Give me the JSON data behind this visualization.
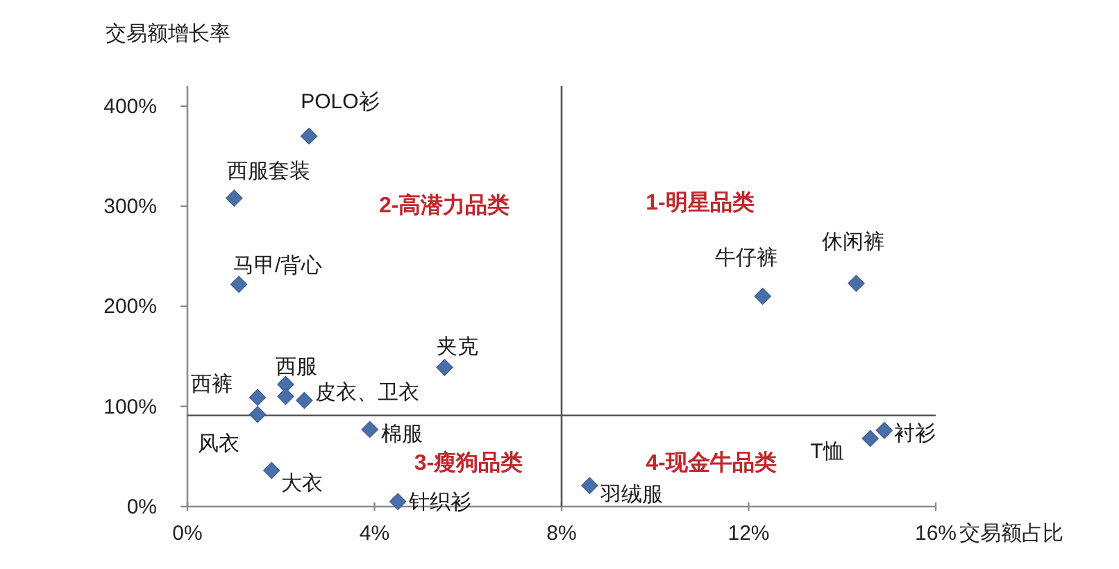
{
  "chart_data": {
    "type": "scatter",
    "xlabel": "交易额占比",
    "ylabel": "交易额增长率",
    "x": [
      2.6,
      1.0,
      1.1,
      5.5,
      2.1,
      2.1,
      2.5,
      1.5,
      1.5,
      3.9,
      1.8,
      4.5,
      12.3,
      14.3,
      14.9,
      14.6,
      8.6
    ],
    "values": [
      370,
      308,
      222,
      139,
      122,
      110,
      106,
      109,
      92,
      77,
      36,
      5,
      210,
      223,
      76,
      68,
      21
    ],
    "color": "#4a6fa8",
    "marker": "diamond",
    "xlim": [
      0,
      16
    ],
    "xticks": [
      {
        "value": 0,
        "label": "0%"
      },
      {
        "value": 4,
        "label": "4%"
      },
      {
        "value": 8,
        "label": "8%"
      },
      {
        "value": 12,
        "label": "12%"
      },
      {
        "value": 16,
        "label": "16%"
      }
    ],
    "ylim": [
      0,
      420
    ],
    "yticks": [
      {
        "value": 0,
        "label": "0%"
      },
      {
        "value": 100,
        "label": "100%"
      },
      {
        "value": 200,
        "label": "200%"
      },
      {
        "value": 300,
        "label": "300%"
      },
      {
        "value": 400,
        "label": "400%"
      }
    ],
    "ref_lines": [
      {
        "axis": "x",
        "value": 8,
        "color": "#555555"
      },
      {
        "axis": "y",
        "value": 91,
        "color": "#555555"
      }
    ],
    "annotations": [
      {
        "text": "POLO衫",
        "x": 2.6,
        "y": 370
      },
      {
        "text": "西服套装",
        "x": 1.0,
        "y": 308
      },
      {
        "text": "马甲/背心",
        "x": 1.1,
        "y": 222
      },
      {
        "text": "夹克",
        "x": 5.5,
        "y": 139
      },
      {
        "text": "西服",
        "x": 2.1,
        "y": 122
      },
      {
        "text": "皮衣、卫衣",
        "x": 2.5,
        "y": 106
      },
      {
        "text": "西裤",
        "x": 1.5,
        "y": 109
      },
      {
        "text": "风衣",
        "x": 1.5,
        "y": 92
      },
      {
        "text": "棉服",
        "x": 3.9,
        "y": 77
      },
      {
        "text": "大衣",
        "x": 1.8,
        "y": 36
      },
      {
        "text": "针织衫",
        "x": 4.5,
        "y": 5
      },
      {
        "text": "牛仔裤",
        "x": 12.3,
        "y": 210
      },
      {
        "text": "休闲裤",
        "x": 14.3,
        "y": 223
      },
      {
        "text": "衬衫",
        "x": 14.9,
        "y": 76
      },
      {
        "text": "T恤",
        "x": 14.6,
        "y": 68
      },
      {
        "text": "羽绒服",
        "x": 8.6,
        "y": 21
      },
      "2-高潜力品类",
      "1-明星品类",
      "3-瘦狗品类",
      "4-现金牛品类"
    ]
  }
}
